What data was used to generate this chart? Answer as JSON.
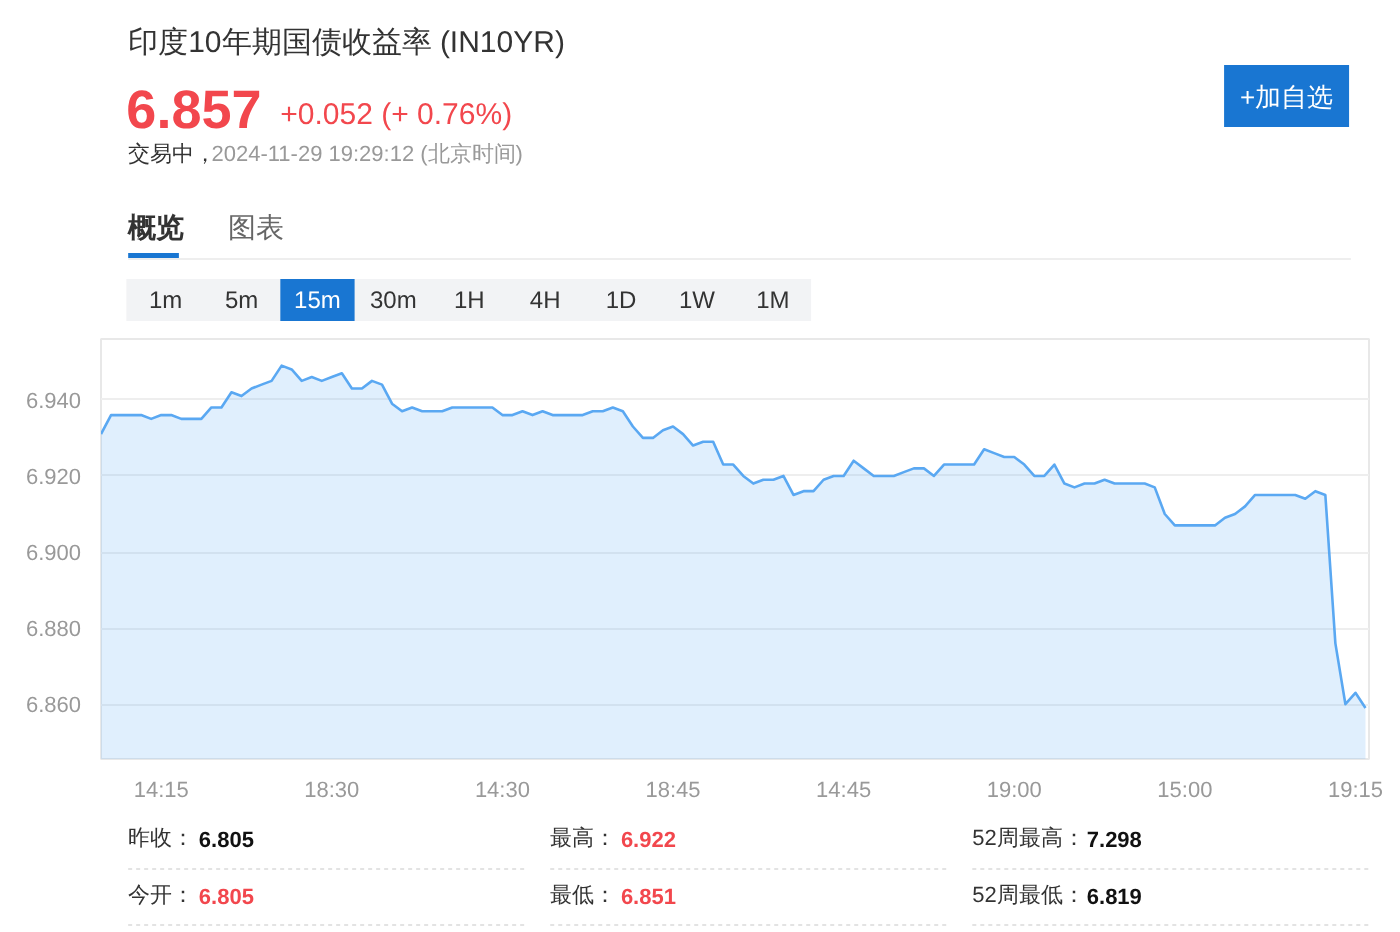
{
  "chart_data": {
    "type": "area",
    "title": "印度10年期国债收益率 (IN10YR)",
    "annotations": [
      "6.857",
      "+0.052 (+ 0.76%)",
      "交易中，",
      "2024-11-29 19:29:12 (北京时间)",
      "+加自选",
      "概览",
      "图表",
      "1m",
      "5m",
      "15m",
      "30m",
      "1H",
      "4H",
      "1D",
      "1W",
      "1M",
      "昨收：",
      "6.805",
      "最高：",
      "6.922",
      "52周最高：",
      "7.298",
      "今开：",
      "6.805",
      "最低：",
      "6.851",
      "52周最低：",
      "6.819"
    ],
    "categories": [
      null,
      null,
      null,
      null,
      null,
      null,
      "14:15",
      null,
      null,
      null,
      null,
      null,
      null,
      null,
      null,
      null,
      null,
      null,
      null,
      null,
      null,
      null,
      null,
      "18:30",
      null,
      null,
      null,
      null,
      null,
      null,
      null,
      null,
      null,
      null,
      null,
      null,
      null,
      null,
      null,
      null,
      "14:30",
      null,
      null,
      null,
      null,
      null,
      null,
      null,
      null,
      null,
      null,
      null,
      null,
      null,
      null,
      null,
      null,
      "18:45",
      null,
      null,
      null,
      null,
      null,
      null,
      null,
      null,
      null,
      null,
      null,
      null,
      null,
      null,
      null,
      null,
      "14:45",
      null,
      null,
      null,
      null,
      null,
      null,
      null,
      null,
      null,
      null,
      null,
      null,
      null,
      null,
      null,
      null,
      "19:00",
      null,
      null,
      null,
      null,
      null,
      null,
      null,
      null,
      null,
      null,
      null,
      null,
      null,
      null,
      null,
      null,
      "15:00",
      null,
      null,
      null,
      null,
      null,
      null,
      null,
      null,
      null,
      null,
      null,
      null,
      null,
      null,
      null,
      null,
      "19:15",
      null
    ],
    "values": [
      6.931,
      6.936,
      6.936,
      6.936,
      6.936,
      6.935,
      6.936,
      6.936,
      6.935,
      6.935,
      6.935,
      6.938,
      6.938,
      6.942,
      6.941,
      6.943,
      6.944,
      6.945,
      6.949,
      6.948,
      6.945,
      6.946,
      6.945,
      6.946,
      6.947,
      6.943,
      6.943,
      6.945,
      6.944,
      6.939,
      6.937,
      6.938,
      6.937,
      6.937,
      6.937,
      6.938,
      6.938,
      6.938,
      6.938,
      6.938,
      6.936,
      6.936,
      6.937,
      6.936,
      6.937,
      6.936,
      6.936,
      6.936,
      6.936,
      6.937,
      6.937,
      6.938,
      6.937,
      6.933,
      6.93,
      6.93,
      6.932,
      6.933,
      6.931,
      6.928,
      6.929,
      6.929,
      6.923,
      6.923,
      6.92,
      6.918,
      6.919,
      6.919,
      6.92,
      6.915,
      6.916,
      6.916,
      6.919,
      6.92,
      6.92,
      6.924,
      6.922,
      6.92,
      6.92,
      6.92,
      6.921,
      6.922,
      6.922,
      6.92,
      6.923,
      6.923,
      6.923,
      6.923,
      6.927,
      6.926,
      6.925,
      6.925,
      6.923,
      6.92,
      6.92,
      6.923,
      6.918,
      6.917,
      6.918,
      6.918,
      6.919,
      6.918,
      6.918,
      6.918,
      6.918,
      6.917,
      6.91,
      6.907,
      6.907,
      6.907,
      6.907,
      6.907,
      6.909,
      6.91,
      6.912,
      6.915,
      6.915,
      6.915,
      6.915,
      6.915,
      6.914,
      6.916,
      6.915,
      6.876,
      6.86,
      6.863,
      6.859
    ],
    "color": "#5aa8f2",
    "ylim": [
      6.8456,
      6.956
    ],
    "yticks": [
      {
        "value": 6.86,
        "label": "6.860"
      },
      {
        "value": 6.88,
        "label": "6.880"
      },
      {
        "value": 6.9,
        "label": "6.900"
      },
      {
        "value": 6.92,
        "label": "6.920"
      },
      {
        "value": 6.94,
        "label": "6.940"
      }
    ],
    "grid": "y",
    "line_style": "solid"
  }
}
